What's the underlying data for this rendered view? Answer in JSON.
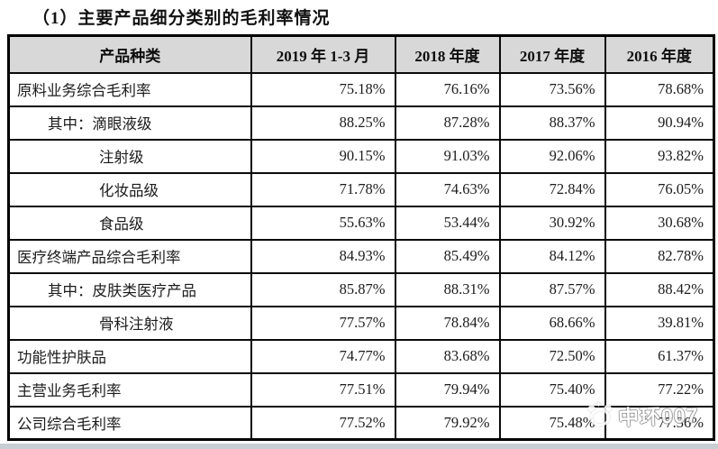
{
  "title": "（1）主要产品细分类别的毛利率情况",
  "table": {
    "columns": [
      "产品种类",
      "2019 年 1-3 月",
      "2018 年度",
      "2017 年度",
      "2016 年度"
    ],
    "rows": [
      {
        "label": "原料业务综合毛利率",
        "indent": 0,
        "values": [
          "75.18%",
          "76.16%",
          "73.56%",
          "78.68%"
        ]
      },
      {
        "label": "其中：滴眼液级",
        "indent": 1,
        "values": [
          "88.25%",
          "87.28%",
          "88.37%",
          "90.94%"
        ]
      },
      {
        "label": "注射级",
        "indent": 2,
        "values": [
          "90.15%",
          "91.03%",
          "92.06%",
          "93.82%"
        ]
      },
      {
        "label": "化妆品级",
        "indent": 2,
        "values": [
          "71.78%",
          "74.63%",
          "72.84%",
          "76.05%"
        ]
      },
      {
        "label": "食品级",
        "indent": 2,
        "values": [
          "55.63%",
          "53.44%",
          "30.92%",
          "30.68%"
        ]
      },
      {
        "label": "医疗终端产品综合毛利率",
        "indent": 0,
        "values": [
          "84.93%",
          "85.49%",
          "84.12%",
          "82.78%"
        ]
      },
      {
        "label": "其中：皮肤类医疗产品",
        "indent": 1,
        "values": [
          "85.87%",
          "88.31%",
          "87.57%",
          "88.42%"
        ]
      },
      {
        "label": "骨科注射液",
        "indent": 2,
        "values": [
          "77.57%",
          "78.84%",
          "68.66%",
          "39.81%"
        ]
      },
      {
        "label": "功能性护肤品",
        "indent": 0,
        "values": [
          "74.77%",
          "83.68%",
          "72.50%",
          "61.37%"
        ]
      },
      {
        "label": "主营业务毛利率",
        "indent": 0,
        "values": [
          "77.51%",
          "79.94%",
          "75.40%",
          "77.22%"
        ]
      },
      {
        "label": "公司综合毛利率",
        "indent": 0,
        "values": [
          "77.52%",
          "79.92%",
          "75.48%",
          "77.36%"
        ]
      }
    ]
  },
  "watermark": {
    "text": "中环007"
  },
  "colors": {
    "header_bg": "#d8d8d8",
    "border": "#0a0a0a",
    "text": "#1c1c1c",
    "watermark_text": "#ffffff",
    "bottom_bar": "#c8ced3"
  }
}
